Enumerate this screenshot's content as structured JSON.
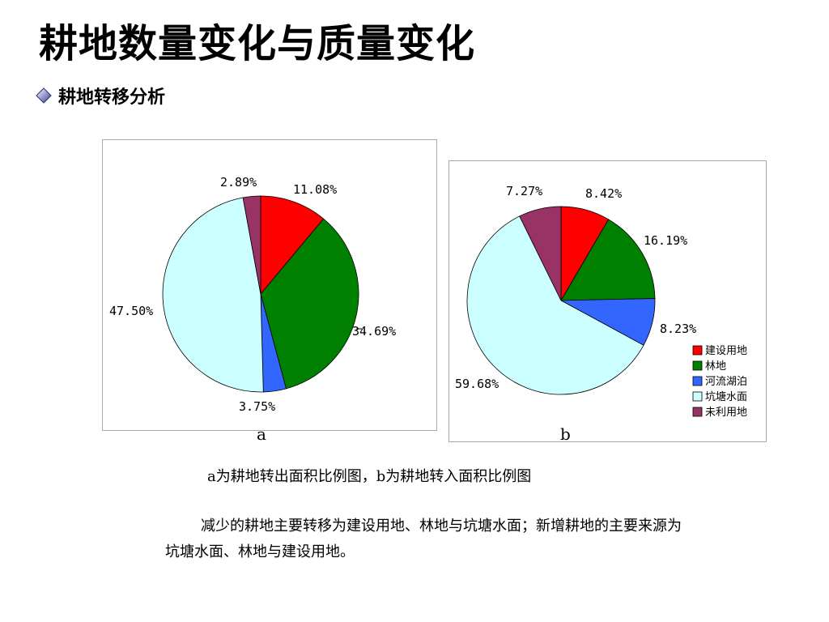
{
  "slide": {
    "title": "耕地数量变化与质量变化",
    "subtitle": "耕地转移分析",
    "caption": "a为耕地转出面积比例图，b为耕地转入面积比例图",
    "body": "减少的耕地主要转移为建设用地、林地与坑塘水面；新增耕地的主要来源为坑塘水面、林地与建设用地。"
  },
  "colors": {
    "construction": "#ff0000",
    "forest": "#008000",
    "river": "#3366ff",
    "pond": "#ccffff",
    "unused": "#993366"
  },
  "chart_data": [
    {
      "type": "pie",
      "label": "a",
      "categories": [
        "建设用地",
        "林地",
        "河流湖泊",
        "坑塘水面",
        "未利用地"
      ],
      "values": [
        11.08,
        34.69,
        3.75,
        47.5,
        2.89
      ],
      "value_labels": [
        "11.08%",
        "34.69%",
        "3.75%",
        "47.50%",
        "2.89%"
      ]
    },
    {
      "type": "pie",
      "label": "b",
      "categories": [
        "建设用地",
        "林地",
        "河流湖泊",
        "坑塘水面",
        "未利用地"
      ],
      "values": [
        8.42,
        16.19,
        8.23,
        59.68,
        7.27
      ],
      "value_labels": [
        "8.42%",
        "16.19%",
        "8.23%",
        "59.68%",
        "7.27%"
      ],
      "legend": {
        "position": "bottom-right",
        "entries": [
          "建设用地",
          "林地",
          "河流湖泊",
          "坑塘水面",
          "未利用地"
        ]
      }
    }
  ]
}
